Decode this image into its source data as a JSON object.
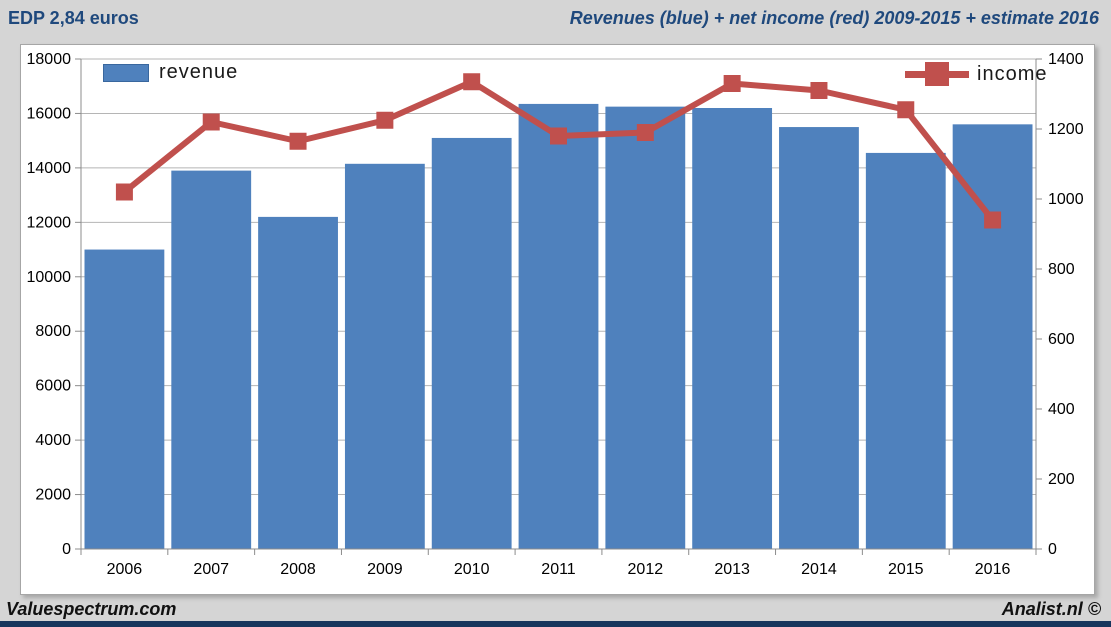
{
  "header": {
    "left_title": "EDP 2,84 euros",
    "right_title": "Revenues (blue) + net income (red) 2009-2015 + estimate 2016"
  },
  "legend": {
    "revenue_label": "revenue",
    "income_label": "income"
  },
  "footer": {
    "left": "Valuespectrum.com",
    "right": "Analist.nl ©"
  },
  "colors": {
    "bar": "#4f81bd",
    "line": "#c0504d",
    "title": "#1f497d",
    "grid": "#b5b5b5",
    "axis": "#8c8c8c",
    "text": "#000000",
    "background": "#d5d5d5",
    "plot_background": "#ffffff",
    "bottom_bar": "#17365d"
  },
  "chart_data": {
    "type": "bar",
    "title": "Revenues (blue) + net income (red) 2009-2015 + estimate 2016",
    "categories": [
      "2006",
      "2007",
      "2008",
      "2009",
      "2010",
      "2011",
      "2012",
      "2013",
      "2014",
      "2015",
      "2016"
    ],
    "series": [
      {
        "name": "revenue",
        "type": "bar",
        "axis": "left",
        "values": [
          11000,
          13900,
          12200,
          14150,
          15100,
          16350,
          16250,
          16200,
          15500,
          14550,
          15600
        ]
      },
      {
        "name": "income",
        "type": "line",
        "axis": "right",
        "values": [
          1020,
          1220,
          1165,
          1225,
          1335,
          1180,
          1190,
          1330,
          1310,
          1255,
          940
        ]
      }
    ],
    "left_axis": {
      "min": 0,
      "max": 18000,
      "step": 2000,
      "tick_labels": [
        "0",
        "2000",
        "4000",
        "6000",
        "8000",
        "10000",
        "12000",
        "14000",
        "16000",
        "18000"
      ]
    },
    "right_axis": {
      "min": 0,
      "max": 1400,
      "step": 200,
      "tick_labels": [
        "0",
        "200",
        "400",
        "600",
        "800",
        "1000",
        "1200",
        "1400"
      ]
    },
    "grid": "horizontal",
    "legend_position": "inside-top"
  }
}
